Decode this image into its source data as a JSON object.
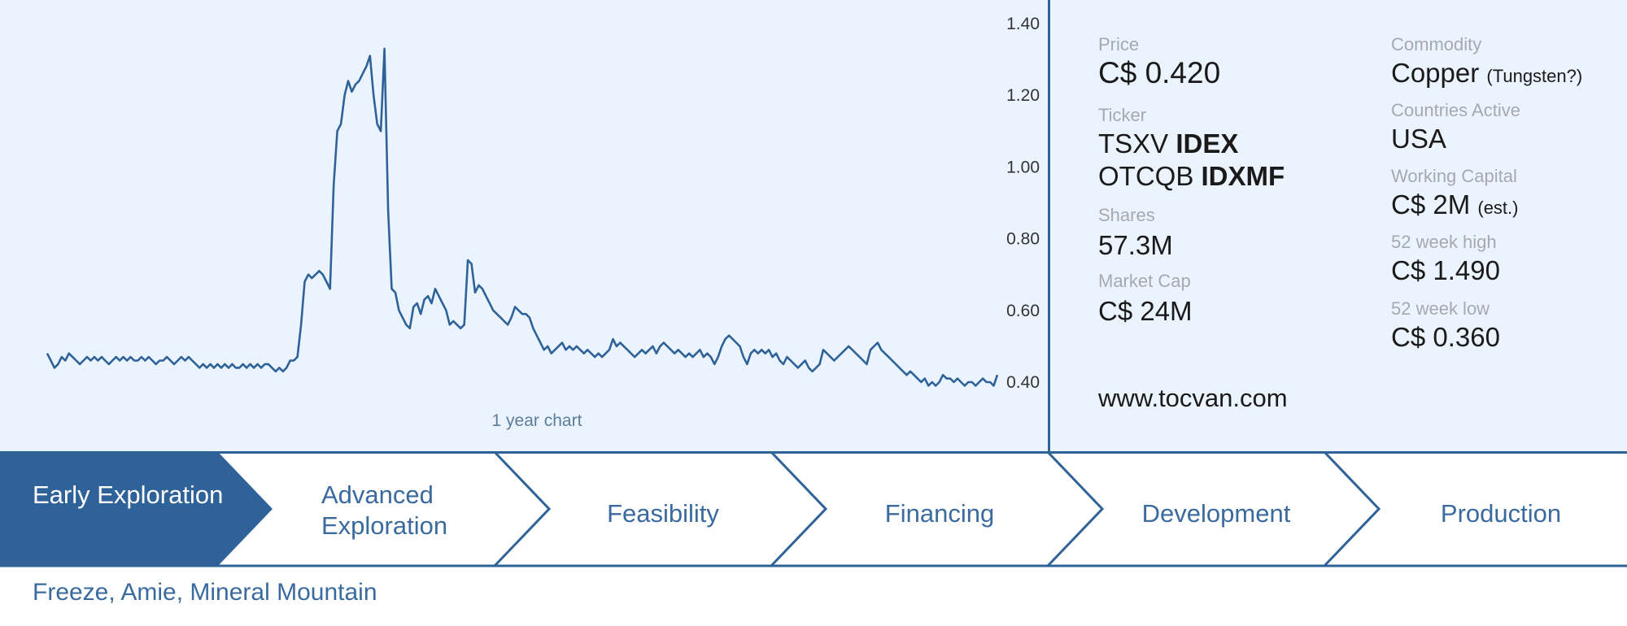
{
  "chart_data": {
    "type": "line",
    "caption": "1 year chart",
    "ylim": [
      0.4,
      1.4
    ],
    "y_axis_side": "right",
    "yticks": [
      "1.40",
      "1.20",
      "1.00",
      "0.80",
      "0.60",
      "0.40"
    ],
    "series": [
      {
        "values": [
          0.48,
          0.46,
          0.44,
          0.45,
          0.47,
          0.46,
          0.48,
          0.47,
          0.46,
          0.45,
          0.46,
          0.47,
          0.46,
          0.47,
          0.46,
          0.47,
          0.46,
          0.45,
          0.46,
          0.47,
          0.46,
          0.47,
          0.46,
          0.47,
          0.46,
          0.46,
          0.47,
          0.46,
          0.47,
          0.46,
          0.45,
          0.46,
          0.46,
          0.47,
          0.46,
          0.45,
          0.46,
          0.47,
          0.46,
          0.47,
          0.46,
          0.45,
          0.44,
          0.45,
          0.44,
          0.45,
          0.44,
          0.45,
          0.44,
          0.45,
          0.44,
          0.45,
          0.44,
          0.44,
          0.45,
          0.44,
          0.45,
          0.44,
          0.45,
          0.44,
          0.45,
          0.45,
          0.44,
          0.43,
          0.44,
          0.43,
          0.44,
          0.46,
          0.46,
          0.47,
          0.56,
          0.68,
          0.7,
          0.69,
          0.7,
          0.71,
          0.7,
          0.68,
          0.66,
          0.95,
          1.1,
          1.12,
          1.2,
          1.24,
          1.21,
          1.23,
          1.24,
          1.26,
          1.28,
          1.31,
          1.2,
          1.12,
          1.1,
          1.33,
          0.88,
          0.66,
          0.65,
          0.6,
          0.58,
          0.56,
          0.55,
          0.61,
          0.62,
          0.59,
          0.63,
          0.64,
          0.62,
          0.66,
          0.64,
          0.62,
          0.6,
          0.56,
          0.57,
          0.56,
          0.55,
          0.56,
          0.74,
          0.73,
          0.65,
          0.67,
          0.66,
          0.64,
          0.62,
          0.6,
          0.59,
          0.58,
          0.57,
          0.56,
          0.58,
          0.61,
          0.6,
          0.59,
          0.59,
          0.58,
          0.55,
          0.53,
          0.51,
          0.49,
          0.5,
          0.48,
          0.49,
          0.5,
          0.51,
          0.49,
          0.5,
          0.49,
          0.5,
          0.49,
          0.48,
          0.49,
          0.48,
          0.47,
          0.48,
          0.47,
          0.48,
          0.49,
          0.52,
          0.5,
          0.51,
          0.5,
          0.49,
          0.48,
          0.47,
          0.48,
          0.49,
          0.48,
          0.49,
          0.5,
          0.48,
          0.5,
          0.51,
          0.5,
          0.49,
          0.48,
          0.49,
          0.48,
          0.47,
          0.48,
          0.47,
          0.48,
          0.49,
          0.47,
          0.48,
          0.47,
          0.45,
          0.47,
          0.5,
          0.52,
          0.53,
          0.52,
          0.51,
          0.5,
          0.47,
          0.45,
          0.48,
          0.49,
          0.48,
          0.49,
          0.48,
          0.49,
          0.47,
          0.48,
          0.46,
          0.45,
          0.47,
          0.46,
          0.45,
          0.44,
          0.45,
          0.46,
          0.44,
          0.43,
          0.44,
          0.45,
          0.49,
          0.48,
          0.47,
          0.46,
          0.47,
          0.48,
          0.49,
          0.5,
          0.49,
          0.48,
          0.47,
          0.46,
          0.45,
          0.49,
          0.5,
          0.51,
          0.49,
          0.48,
          0.47,
          0.46,
          0.45,
          0.44,
          0.43,
          0.42,
          0.43,
          0.42,
          0.41,
          0.4,
          0.41,
          0.39,
          0.4,
          0.39,
          0.4,
          0.42,
          0.41,
          0.41,
          0.4,
          0.41,
          0.4,
          0.39,
          0.4,
          0.4,
          0.39,
          0.4,
          0.41,
          0.4,
          0.4,
          0.39,
          0.42
        ]
      }
    ]
  },
  "stats": {
    "price_label": "Price",
    "price_value": "C$ 0.420",
    "ticker_label": "Ticker",
    "ticker1_exchange": "TSXV",
    "ticker1_symbol": "IDEX",
    "ticker2_exchange": "OTCQB",
    "ticker2_symbol": "IDXMF",
    "shares_label": "Shares",
    "shares_value": "57.3M",
    "marketcap_label": "Market Cap",
    "marketcap_value": "C$ 24M",
    "commodity_label": "Commodity",
    "commodity_value": "Copper",
    "commodity_note": "(Tungsten?)",
    "countries_label": "Countries Active",
    "countries_value": "USA",
    "wc_label": "Working Capital",
    "wc_value": "C$ 2M",
    "wc_note": "(est.)",
    "high_label": "52 week high",
    "high_value": "C$ 1.490",
    "low_label": "52 week low",
    "low_value": "C$ 0.360"
  },
  "website": "www.tocvan.com",
  "stages": {
    "items": [
      "Early Exploration",
      "Advanced Exploration",
      "Feasibility",
      "Financing",
      "Development",
      "Production"
    ],
    "active_index": 0
  },
  "colors": {
    "line": "#2e6299",
    "active_stage_bg": "#2e6299",
    "stage_text": "#3a6a9e",
    "panel_bg": "#ebf4fe"
  },
  "deposits": "Freeze, Amie, Mineral Mountain"
}
